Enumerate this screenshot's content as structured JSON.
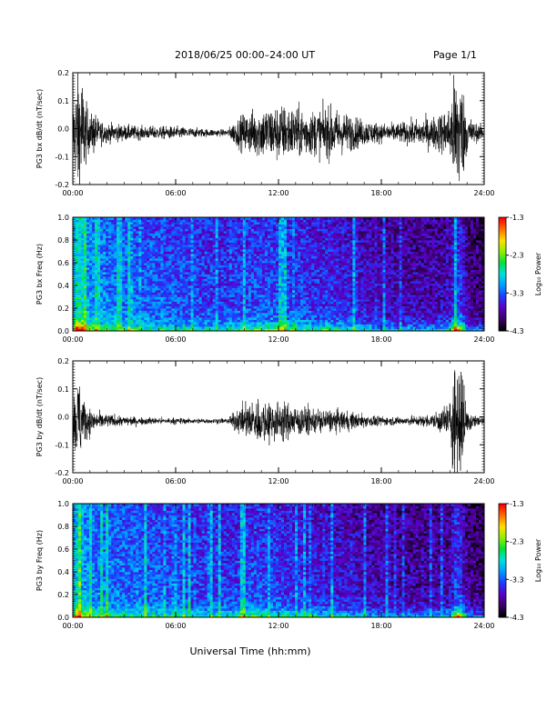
{
  "header": {
    "title": "2018/06/25  00:00–24:00 UT",
    "page_label": "Page 1/1"
  },
  "xlabel": "Universal Time (hh:mm)",
  "colorbar": {
    "ticks": [
      "-1.3",
      "-2.3",
      "-3.3",
      "-4.3"
    ],
    "label": "Log₁₀ Power"
  },
  "colors": {
    "trace": "#000000",
    "colormap": [
      "#000000",
      "#3b006a",
      "#5a00c8",
      "#1f3cff",
      "#009cff",
      "#00e0e0",
      "#00e040",
      "#8cf000",
      "#ffe000",
      "#ff7000",
      "#ff0000"
    ]
  },
  "chart_data": [
    {
      "type": "line",
      "ylabel": "PG3 bx dB/dt (nT/sec)",
      "ylim": [
        -0.2,
        0.2
      ],
      "yticks": [
        "0.2",
        "0.1",
        "0.0",
        "-0.1",
        "-0.2"
      ],
      "xticks": [
        "00:00",
        "06:00",
        "12:00",
        "18:00",
        "24:00"
      ],
      "xlim_hours": [
        0,
        24
      ],
      "series": [
        {
          "hours": [
            0,
            0.25,
            0.5,
            0.75,
            1,
            1.25,
            1.5,
            2,
            3,
            4,
            5,
            6,
            7,
            8,
            9,
            9.5,
            10,
            11,
            12,
            13,
            14,
            15,
            16,
            17,
            18,
            19,
            20,
            21,
            22,
            22.3,
            22.6,
            23,
            23.5,
            24
          ],
          "amplitude": [
            0.08,
            0.2,
            0.2,
            0.1,
            0.05,
            0.07,
            0.04,
            0.03,
            0.025,
            0.02,
            0.02,
            0.02,
            0.015,
            0.012,
            0.01,
            0.04,
            0.06,
            0.08,
            0.09,
            0.08,
            0.07,
            0.08,
            0.06,
            0.04,
            0.03,
            0.03,
            0.04,
            0.05,
            0.08,
            0.2,
            0.2,
            0.06,
            0.03,
            0.02
          ]
        }
      ]
    },
    {
      "type": "heatmap",
      "ylabel": "PG3 bx Freq (Hz)",
      "ylim": [
        0.0,
        1.0
      ],
      "yticks": [
        "1.0",
        "0.8",
        "0.6",
        "0.4",
        "0.2",
        "0.0"
      ],
      "xticks": [
        "00:00",
        "06:00",
        "12:00",
        "18:00",
        "24:00"
      ],
      "xlim_hours": [
        0,
        24
      ],
      "zlim": [
        -4.3,
        -1.3
      ],
      "zlabel": "Log₁₀ Power"
    },
    {
      "type": "line",
      "ylabel": "PG3 by dB/dt (nT/sec)",
      "ylim": [
        -0.2,
        0.2
      ],
      "yticks": [
        "0.2",
        "0.1",
        "0.0",
        "-0.1",
        "-0.2"
      ],
      "xticks": [
        "00:00",
        "06:00",
        "12:00",
        "18:00",
        "24:00"
      ],
      "xlim_hours": [
        0,
        24
      ],
      "series": [
        {
          "hours": [
            0,
            0.25,
            0.5,
            0.75,
            1,
            1.25,
            1.5,
            2,
            3,
            4,
            5,
            6,
            7,
            8,
            9,
            9.5,
            10,
            11,
            12,
            13,
            14,
            15,
            16,
            17,
            18,
            19,
            20,
            21,
            22,
            22.3,
            22.6,
            23,
            23.5,
            24
          ],
          "amplitude": [
            0.06,
            0.14,
            0.12,
            0.06,
            0.04,
            0.03,
            0.025,
            0.02,
            0.015,
            0.012,
            0.01,
            0.01,
            0.008,
            0.008,
            0.008,
            0.03,
            0.05,
            0.07,
            0.06,
            0.05,
            0.04,
            0.035,
            0.03,
            0.02,
            0.015,
            0.012,
            0.015,
            0.02,
            0.06,
            0.2,
            0.2,
            0.04,
            0.02,
            0.012
          ]
        }
      ]
    },
    {
      "type": "heatmap",
      "ylabel": "PG3 by Freq (Hz)",
      "ylim": [
        0.0,
        1.0
      ],
      "yticks": [
        "1.0",
        "0.8",
        "0.6",
        "0.4",
        "0.2",
        "0.0"
      ],
      "xticks": [
        "00:00",
        "06:00",
        "12:00",
        "18:00",
        "24:00"
      ],
      "xlim_hours": [
        0,
        24
      ],
      "zlim": [
        -4.3,
        -1.3
      ],
      "zlabel": "Log₁₀ Power"
    }
  ]
}
